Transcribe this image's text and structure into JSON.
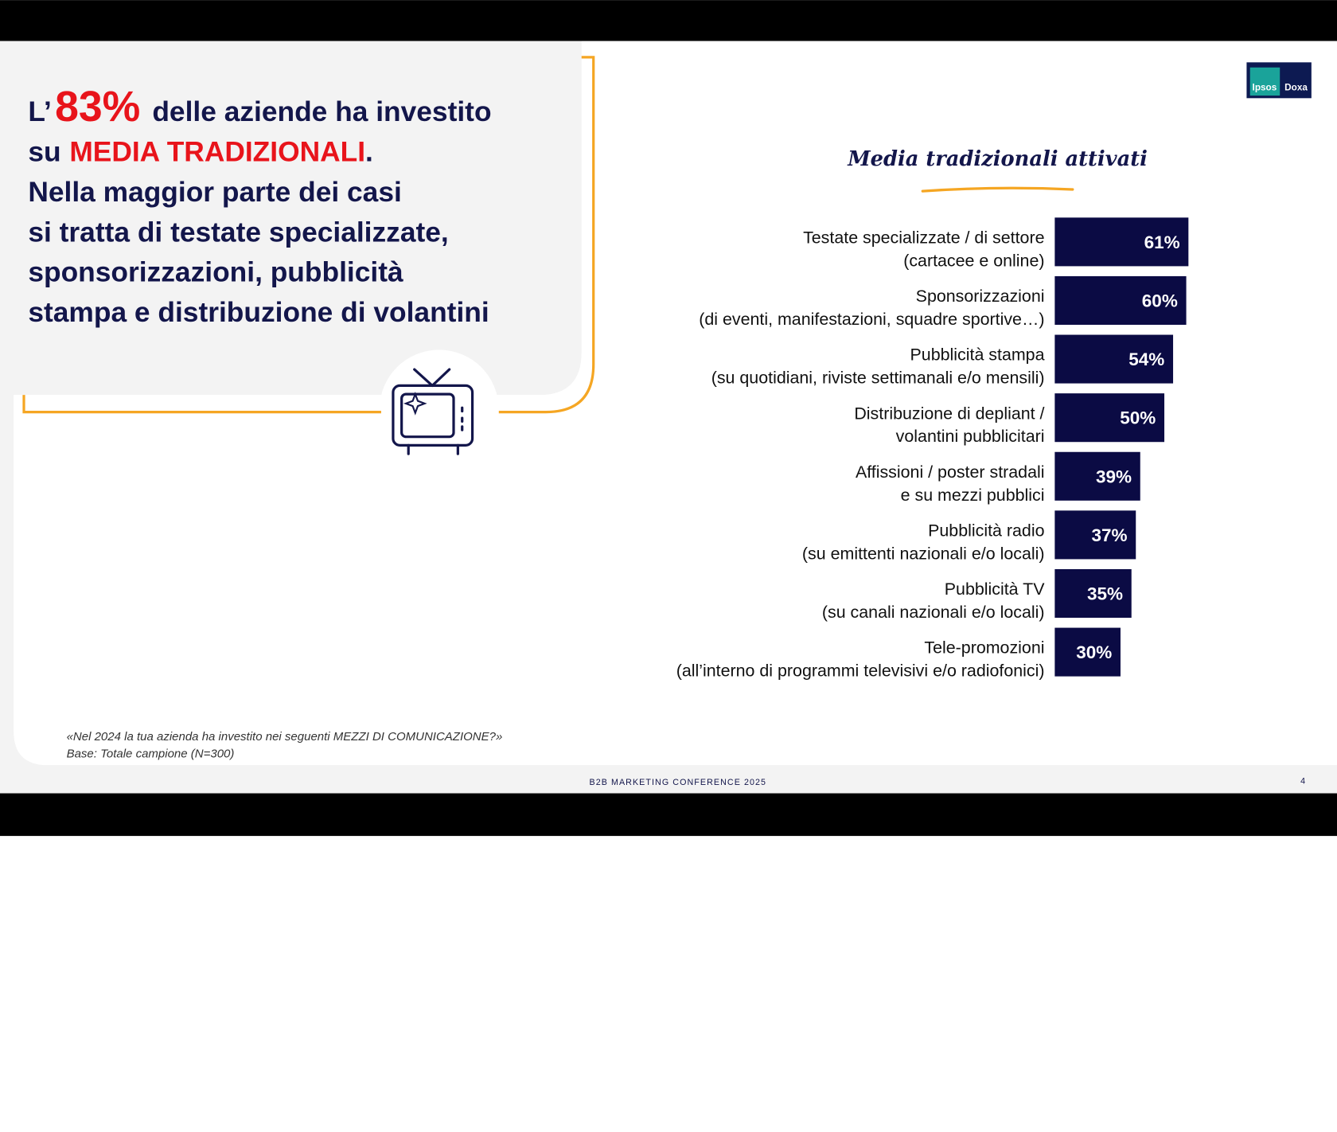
{
  "headline": {
    "prefix": "L’",
    "stat": "83%",
    "line1_rest": "delle aziende ha investito",
    "line2_start": "su",
    "highlight": "MEDIA TRADIZIONALI",
    "line2_end": ".",
    "lines": [
      "Nella maggior parte dei casi",
      "si tratta di testate specializzate,",
      "sponsorizzazioni, pubblicità",
      "stampa e distribuzione di volantini"
    ]
  },
  "logo": {
    "left": "Ipsos",
    "right": "Doxa"
  },
  "chart_data": {
    "type": "bar",
    "orientation": "horizontal",
    "title": "Media tradizionali attivati",
    "categories": [
      "Testate specializzate / di settore\n(cartacee e online)",
      "Sponsorizzazioni\n(di eventi, manifestazioni, squadre sportive…)",
      "Pubblicità stampa\n(su quotidiani, riviste settimanali e/o mensili)",
      "Distribuzione di depliant /\nvolantini pubblicitari",
      "Affissioni / poster stradali\ne su mezzi pubblici",
      "Pubblicità radio\n(su emittenti nazionali e/o locali)",
      "Pubblicità TV\n(su canali nazionali e/o locali)",
      "Tele-promozioni\n(all’interno di programmi televisivi e/o radiofonici)"
    ],
    "values": [
      61,
      60,
      54,
      50,
      39,
      37,
      35,
      30
    ],
    "value_labels": [
      "61%",
      "60%",
      "54%",
      "50%",
      "39%",
      "37%",
      "35%",
      "30%"
    ],
    "color": "#0b0b44"
  },
  "footnote": {
    "question": "«Nel 2024 la tua azienda ha investito nei seguenti MEZZI DI COMUNICAZIONE?»",
    "base": "Base: Totale campione (N=300)"
  },
  "footer": {
    "event": "B2B MARKETING CONFERENCE 2025",
    "page": "4"
  }
}
